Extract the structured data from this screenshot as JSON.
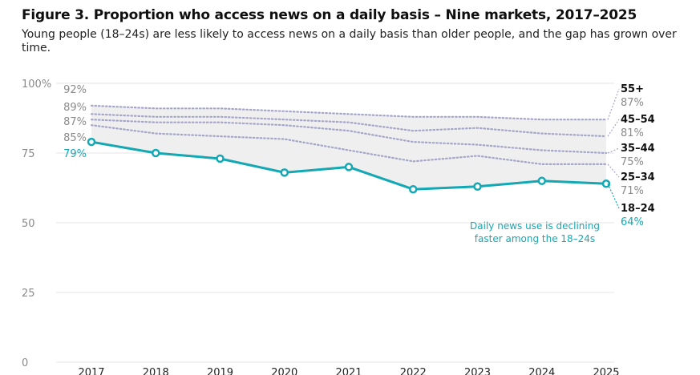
{
  "title": "Figure 3. Proportion who access news on a daily basis – Nine markets, 2017–2025",
  "subtitle": "Young people (18–24s) are less likely to access news on a daily basis than older people, and the gap has grown over time.",
  "chart_data": {
    "type": "line",
    "title": "Figure 3. Proportion who access news on a daily basis – Nine markets, 2017–2025",
    "xlabel": "",
    "ylabel": "",
    "ylim": [
      0,
      100
    ],
    "y_ticks": [
      0,
      25,
      50,
      75,
      100
    ],
    "y_tick_labels": [
      "0",
      "25",
      "50",
      "75",
      "100%"
    ],
    "categories": [
      "2017",
      "2018",
      "2019",
      "2020",
      "2021",
      "2022",
      "2023",
      "2024",
      "2025"
    ],
    "series": [
      {
        "name": "55+",
        "values": [
          92,
          91,
          91,
          90,
          89,
          88,
          88,
          87,
          87
        ],
        "start_label": "92%",
        "end_label": "87%"
      },
      {
        "name": "45–54",
        "values": [
          89,
          88,
          88,
          87,
          86,
          83,
          84,
          82,
          81
        ],
        "start_label": "89%",
        "end_label": "81%"
      },
      {
        "name": "35–44",
        "values": [
          87,
          86,
          86,
          85,
          83,
          79,
          78,
          76,
          75
        ],
        "start_label": "87%",
        "end_label": "75%"
      },
      {
        "name": "25–34",
        "values": [
          85,
          82,
          81,
          80,
          76,
          72,
          74,
          71,
          71
        ],
        "start_label": "85%",
        "end_label": "71%"
      },
      {
        "name": "18–24",
        "values": [
          79,
          75,
          73,
          68,
          70,
          62,
          63,
          65,
          64
        ],
        "start_label": "79%",
        "end_label": "64%",
        "highlight": true
      }
    ],
    "annotation": [
      "Daily news use is declining",
      "faster among the 18–24s"
    ],
    "colors": {
      "highlight": "#14a8b5",
      "others": "#a4a5c8",
      "band": "#efefef",
      "grid": "#e4e4e4",
      "axis_text": "#8a8a8a"
    }
  }
}
